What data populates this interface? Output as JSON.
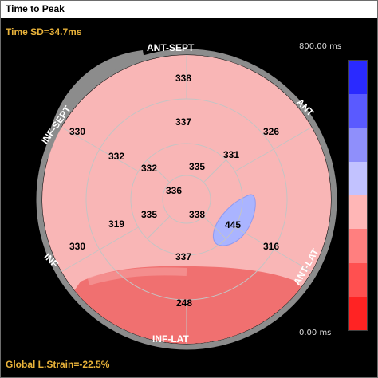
{
  "title": "Time to Peak",
  "time_sd": "Time SD=34.7ms",
  "global_strain": "Global L.Strain=-22.5%",
  "scale": {
    "max_label": "800.00 ms",
    "min_label": "0.00 ms",
    "bands": [
      "#2a2aff",
      "#5a5aff",
      "#8f8ffb",
      "#c2c2ff",
      "#ffb6b6",
      "#ff7f7f",
      "#ff5050",
      "#ff2323"
    ]
  },
  "colors": {
    "accent_text": "#e8b23a",
    "segment_fill": "#f9b6b6",
    "inf_lat_fill": "#f07070",
    "lateral_spot": "#aab4ff",
    "ring": "#8c8c8c"
  },
  "wall_labels": {
    "ant_sept": "ANT-SEPT",
    "ant": "ANT",
    "ant_lat": "ANT-LAT",
    "inf_lat": "INF-LAT",
    "inf": "INF",
    "inf_sept": "INF-SEPT"
  },
  "segments": {
    "basal": [
      "338",
      "326",
      "316",
      "248",
      "330",
      "330"
    ],
    "mid": [
      "337",
      "331",
      "445",
      "337",
      "319",
      "332"
    ],
    "apical": [
      "335",
      "338",
      "335",
      "332"
    ],
    "apex": "336"
  }
}
